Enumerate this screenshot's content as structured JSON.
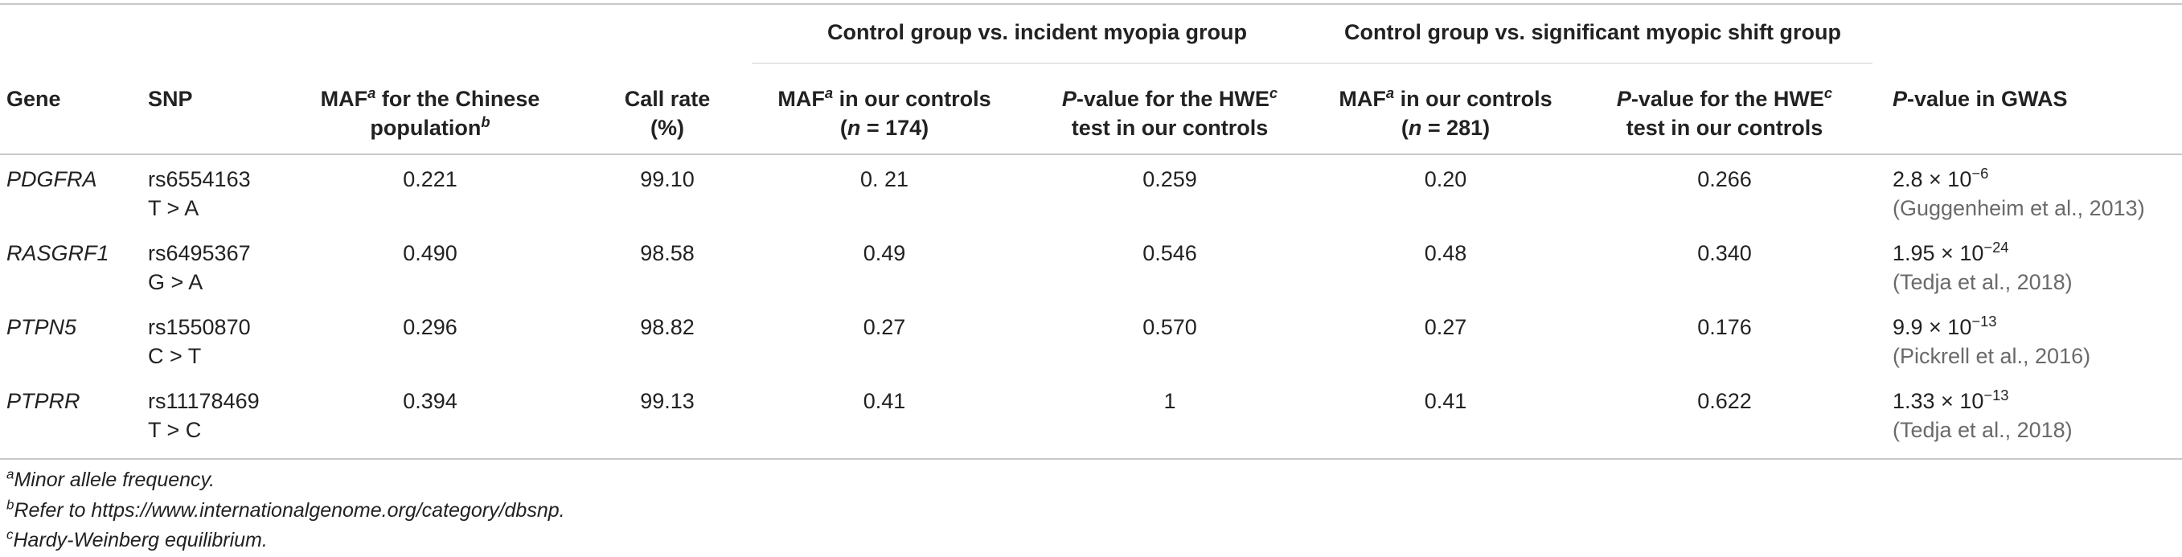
{
  "header": {
    "span1": "Control group vs. incident myopia group",
    "span2": "Control group vs. significant myopic shift group",
    "gene": "Gene",
    "snp": "SNP",
    "maf_cn_a": "MAF",
    "maf_cn_sup": "a",
    "maf_cn_b": " for the Chinese",
    "maf_cn_c": "population",
    "maf_cn_sup2": "b",
    "callrate_a": "Call rate",
    "callrate_b": "(%)",
    "maf_ctrl_a": "MAF",
    "maf_ctrl_sup": "a",
    "maf_ctrl_b": " in our controls",
    "n1_open": "(",
    "n_letter": "n",
    "n1_rest": " = 174)",
    "n2_rest": " = 281)",
    "p_letter": "P",
    "hwe_a": "-value for the HWE",
    "hwe_sup": "c",
    "hwe_b": "test in our controls",
    "gwas_rest": "-value in GWAS"
  },
  "rows": [
    {
      "gene": "PDGFRA",
      "snp": "rs6554163",
      "allele": "T > A",
      "maf_cn": "0.221",
      "call": "99.10",
      "maf1": "0. 21",
      "p1": "0.259",
      "maf2": "0.20",
      "p2": "0.266",
      "gwas_base": "2.8 × 10",
      "gwas_exp": "−6",
      "ref": "(Guggenheim et al., 2013)"
    },
    {
      "gene": "RASGRF1",
      "snp": "rs6495367",
      "allele": "G > A",
      "maf_cn": "0.490",
      "call": "98.58",
      "maf1": "0.49",
      "p1": "0.546",
      "maf2": "0.48",
      "p2": "0.340",
      "gwas_base": "1.95 × 10",
      "gwas_exp": "−24",
      "ref": "(Tedja et al., 2018)"
    },
    {
      "gene": "PTPN5",
      "snp": "rs1550870",
      "allele": "C > T",
      "maf_cn": "0.296",
      "call": "98.82",
      "maf1": "0.27",
      "p1": "0.570",
      "maf2": "0.27",
      "p2": "0.176",
      "gwas_base": "9.9 × 10",
      "gwas_exp": "−13",
      "ref": "(Pickrell et al., 2016)"
    },
    {
      "gene": "PTPRR",
      "snp": "rs11178469",
      "allele": "T > C",
      "maf_cn": "0.394",
      "call": "99.13",
      "maf1": "0.41",
      "p1": "1",
      "maf2": "0.41",
      "p2": "0.622",
      "gwas_base": "1.33 × 10",
      "gwas_exp": "−13",
      "ref": "(Tedja et al., 2018)"
    }
  ],
  "footnotes": [
    {
      "mark": "a",
      "text": "Minor allele frequency."
    },
    {
      "mark": "b",
      "text": "Refer to https://www.internationalgenome.org/category/dbsnp."
    },
    {
      "mark": "c",
      "text": "Hardy-Weinberg equilibrium."
    }
  ]
}
